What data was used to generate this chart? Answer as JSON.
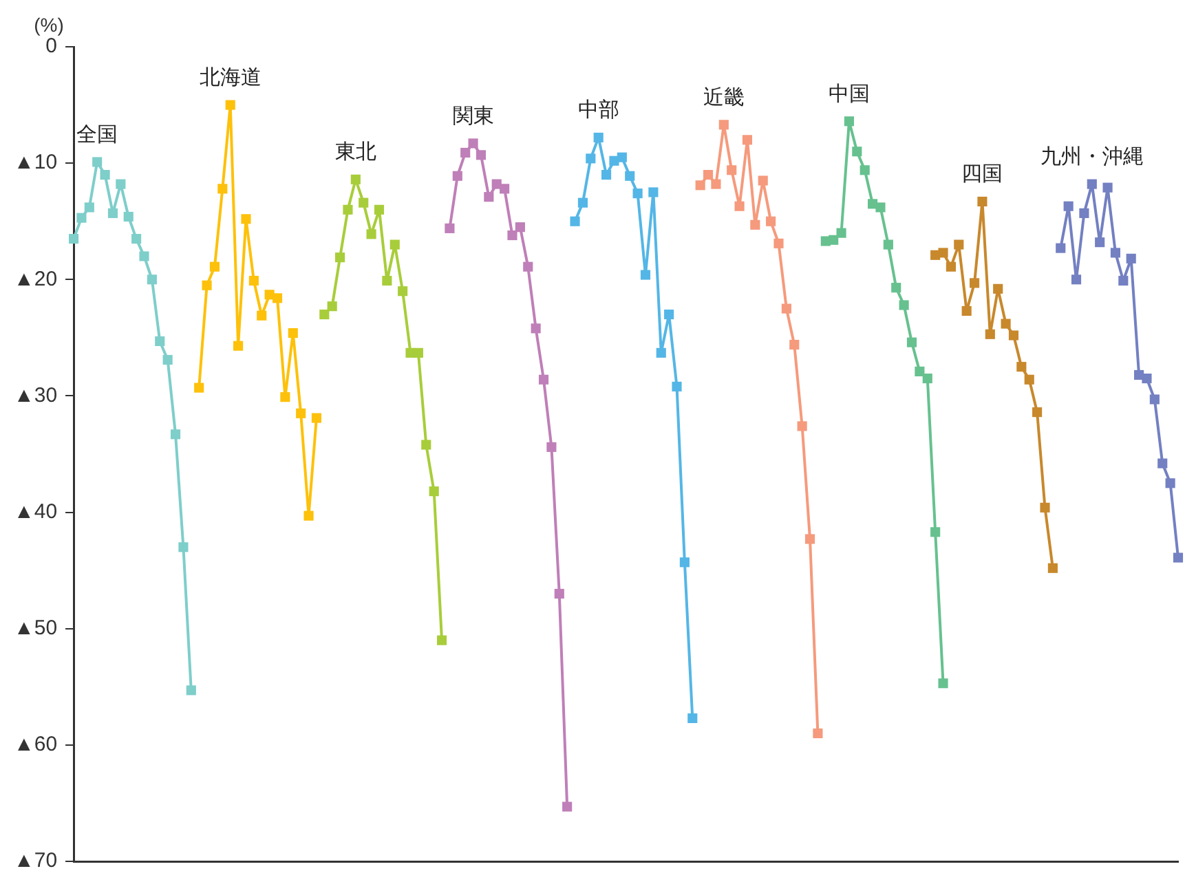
{
  "chart_data": {
    "type": "line",
    "ylabel": "(%)",
    "categories": [
      null,
      null,
      null,
      null,
      null,
      null,
      null,
      null,
      null,
      null,
      null,
      null,
      null,
      null,
      null,
      null,
      null,
      null,
      null,
      null,
      null,
      null,
      null,
      null,
      null,
      null,
      null,
      null,
      null,
      null,
      null,
      null,
      null,
      null,
      null,
      null,
      null,
      null,
      null,
      null,
      null,
      null,
      null,
      null,
      null,
      null,
      null,
      null,
      null,
      null,
      null,
      null,
      null,
      null,
      null,
      null,
      null,
      null,
      null,
      null,
      null,
      null,
      null,
      null,
      null,
      null,
      null,
      null,
      null,
      null,
      null,
      null,
      null,
      null,
      null,
      null,
      null,
      null,
      null,
      null,
      null,
      null,
      null,
      null,
      null,
      null,
      null,
      null,
      null,
      null,
      null,
      null,
      null,
      null,
      null,
      null,
      null,
      null,
      null,
      null,
      null,
      null,
      null,
      null,
      null,
      null,
      null,
      null,
      null,
      null,
      null,
      null,
      null,
      null,
      null,
      null,
      null,
      null,
      null,
      null,
      null,
      null,
      null,
      null,
      null,
      null,
      null,
      null,
      null,
      null,
      null,
      null,
      null,
      null,
      null,
      null,
      null,
      null,
      null,
      null,
      null,
      null
    ],
    "ylim": [
      -70,
      0
    ],
    "yticks": [
      0,
      {
        "value": -10,
        "label": "▲10"
      },
      {
        "value": -20,
        "label": "▲20"
      },
      {
        "value": -30,
        "label": "▲30"
      },
      {
        "value": -40,
        "label": "▲40"
      },
      {
        "value": -50,
        "label": "▲50"
      },
      {
        "value": -60,
        "label": "▲60"
      },
      {
        "value": -70,
        "label": "▲70"
      }
    ],
    "tick_labels": "y",
    "grid": false,
    "legend": false,
    "marker": "square",
    "line_style": "solid",
    "series": [
      {
        "name": "全国",
        "color": "#7ececa",
        "values": [
          -16.5,
          -14.7,
          -13.8,
          -9.9,
          -11.0,
          -14.3,
          -11.8,
          -14.6,
          -16.5,
          -18.0,
          -20.0,
          -25.3,
          -26.9,
          -33.3,
          -43.0,
          -55.3,
          null,
          null,
          null,
          null,
          null,
          null,
          null,
          null,
          null,
          null,
          null,
          null,
          null,
          null,
          null,
          null,
          null,
          null,
          null,
          null,
          null,
          null,
          null,
          null,
          null,
          null,
          null,
          null,
          null,
          null,
          null,
          null,
          null,
          null,
          null,
          null,
          null,
          null,
          null,
          null,
          null,
          null,
          null,
          null,
          null,
          null,
          null,
          null,
          null,
          null,
          null,
          null,
          null,
          null,
          null,
          null,
          null,
          null,
          null,
          null,
          null,
          null,
          null,
          null,
          null,
          null,
          null,
          null,
          null,
          null,
          null,
          null,
          null,
          null,
          null,
          null,
          null,
          null,
          null,
          null,
          null,
          null,
          null,
          null,
          null,
          null,
          null,
          null,
          null,
          null,
          null,
          null,
          null,
          null,
          null,
          null,
          null,
          null,
          null,
          null,
          null,
          null,
          null,
          null,
          null,
          null,
          null,
          null,
          null,
          null,
          null,
          null,
          null,
          null,
          null,
          null,
          null,
          null,
          null,
          null,
          null,
          null,
          null,
          null,
          null,
          null
        ]
      },
      {
        "name": "北海道",
        "color": "#fdc10b",
        "values": [
          null,
          null,
          null,
          null,
          null,
          null,
          null,
          null,
          null,
          null,
          null,
          null,
          null,
          null,
          null,
          null,
          -29.3,
          -20.5,
          -18.9,
          -12.2,
          -5.0,
          -25.7,
          -14.8,
          -20.1,
          -23.1,
          -21.3,
          -21.6,
          -30.1,
          -24.6,
          -31.5,
          -40.3,
          -31.9,
          null,
          null,
          null,
          null,
          null,
          null,
          null,
          null,
          null,
          null,
          null,
          null,
          null,
          null,
          null,
          null,
          null,
          null,
          null,
          null,
          null,
          null,
          null,
          null,
          null,
          null,
          null,
          null,
          null,
          null,
          null,
          null,
          null,
          null,
          null,
          null,
          null,
          null,
          null,
          null,
          null,
          null,
          null,
          null,
          null,
          null,
          null,
          null,
          null,
          null,
          null,
          null,
          null,
          null,
          null,
          null,
          null,
          null,
          null,
          null,
          null,
          null,
          null,
          null,
          null,
          null,
          null,
          null,
          null,
          null,
          null,
          null,
          null,
          null,
          null,
          null,
          null,
          null,
          null,
          null,
          null,
          null,
          null,
          null,
          null,
          null,
          null,
          null,
          null,
          null,
          null,
          null,
          null,
          null,
          null,
          null,
          null,
          null,
          null,
          null,
          null,
          null,
          null,
          null,
          null,
          null,
          null,
          null,
          null,
          null
        ]
      },
      {
        "name": "東北",
        "color": "#a8cd3a",
        "values": [
          null,
          null,
          null,
          null,
          null,
          null,
          null,
          null,
          null,
          null,
          null,
          null,
          null,
          null,
          null,
          null,
          null,
          null,
          null,
          null,
          null,
          null,
          null,
          null,
          null,
          null,
          null,
          null,
          null,
          null,
          null,
          null,
          -23.0,
          -22.3,
          -18.1,
          -14.0,
          -11.4,
          -13.4,
          -16.1,
          -14.0,
          -20.1,
          -17.0,
          -21.0,
          -26.3,
          -26.3,
          -34.2,
          -38.2,
          -51.0,
          null,
          null,
          null,
          null,
          null,
          null,
          null,
          null,
          null,
          null,
          null,
          null,
          null,
          null,
          null,
          null,
          null,
          null,
          null,
          null,
          null,
          null,
          null,
          null,
          null,
          null,
          null,
          null,
          null,
          null,
          null,
          null,
          null,
          null,
          null,
          null,
          null,
          null,
          null,
          null,
          null,
          null,
          null,
          null,
          null,
          null,
          null,
          null,
          null,
          null,
          null,
          null,
          null,
          null,
          null,
          null,
          null,
          null,
          null,
          null,
          null,
          null,
          null,
          null,
          null,
          null,
          null,
          null,
          null,
          null,
          null,
          null,
          null,
          null,
          null,
          null,
          null,
          null,
          null,
          null,
          null,
          null,
          null,
          null,
          null,
          null,
          null,
          null,
          null,
          null,
          null,
          null,
          null,
          null
        ]
      },
      {
        "name": "関東",
        "color": "#bf7fb8",
        "values": [
          null,
          null,
          null,
          null,
          null,
          null,
          null,
          null,
          null,
          null,
          null,
          null,
          null,
          null,
          null,
          null,
          null,
          null,
          null,
          null,
          null,
          null,
          null,
          null,
          null,
          null,
          null,
          null,
          null,
          null,
          null,
          null,
          null,
          null,
          null,
          null,
          null,
          null,
          null,
          null,
          null,
          null,
          null,
          null,
          null,
          null,
          null,
          null,
          -15.6,
          -11.1,
          -9.1,
          -8.3,
          -9.3,
          -12.9,
          -11.8,
          -12.2,
          -16.2,
          -15.5,
          -18.9,
          -24.2,
          -28.6,
          -34.4,
          -47.0,
          -65.3,
          null,
          null,
          null,
          null,
          null,
          null,
          null,
          null,
          null,
          null,
          null,
          null,
          null,
          null,
          null,
          null,
          null,
          null,
          null,
          null,
          null,
          null,
          null,
          null,
          null,
          null,
          null,
          null,
          null,
          null,
          null,
          null,
          null,
          null,
          null,
          null,
          null,
          null,
          null,
          null,
          null,
          null,
          null,
          null,
          null,
          null,
          null,
          null,
          null,
          null,
          null,
          null,
          null,
          null,
          null,
          null,
          null,
          null,
          null,
          null,
          null,
          null,
          null,
          null,
          null,
          null,
          null,
          null,
          null,
          null,
          null,
          null,
          null,
          null,
          null,
          null,
          null,
          null
        ]
      },
      {
        "name": "中部",
        "color": "#54b6e6",
        "values": [
          null,
          null,
          null,
          null,
          null,
          null,
          null,
          null,
          null,
          null,
          null,
          null,
          null,
          null,
          null,
          null,
          null,
          null,
          null,
          null,
          null,
          null,
          null,
          null,
          null,
          null,
          null,
          null,
          null,
          null,
          null,
          null,
          null,
          null,
          null,
          null,
          null,
          null,
          null,
          null,
          null,
          null,
          null,
          null,
          null,
          null,
          null,
          null,
          null,
          null,
          null,
          null,
          null,
          null,
          null,
          null,
          null,
          null,
          null,
          null,
          null,
          null,
          null,
          null,
          -15.0,
          -13.4,
          -9.6,
          -7.8,
          -11.0,
          -9.8,
          -9.5,
          -11.1,
          -12.6,
          -19.6,
          -12.5,
          -26.3,
          -23.0,
          -29.2,
          -44.3,
          -57.7,
          null,
          null,
          null,
          null,
          null,
          null,
          null,
          null,
          null,
          null,
          null,
          null,
          null,
          null,
          null,
          null,
          null,
          null,
          null,
          null,
          null,
          null,
          null,
          null,
          null,
          null,
          null,
          null,
          null,
          null,
          null,
          null,
          null,
          null,
          null,
          null,
          null,
          null,
          null,
          null,
          null,
          null,
          null,
          null,
          null,
          null,
          null,
          null,
          null,
          null,
          null,
          null,
          null,
          null,
          null,
          null,
          null,
          null,
          null,
          null,
          null,
          null
        ]
      },
      {
        "name": "近畿",
        "color": "#f59a7c",
        "values": [
          null,
          null,
          null,
          null,
          null,
          null,
          null,
          null,
          null,
          null,
          null,
          null,
          null,
          null,
          null,
          null,
          null,
          null,
          null,
          null,
          null,
          null,
          null,
          null,
          null,
          null,
          null,
          null,
          null,
          null,
          null,
          null,
          null,
          null,
          null,
          null,
          null,
          null,
          null,
          null,
          null,
          null,
          null,
          null,
          null,
          null,
          null,
          null,
          null,
          null,
          null,
          null,
          null,
          null,
          null,
          null,
          null,
          null,
          null,
          null,
          null,
          null,
          null,
          null,
          null,
          null,
          null,
          null,
          null,
          null,
          null,
          null,
          null,
          null,
          null,
          null,
          null,
          null,
          null,
          null,
          -11.9,
          -11.0,
          -11.8,
          -6.7,
          -10.6,
          -13.7,
          -8.0,
          -15.3,
          -11.5,
          -15.0,
          -16.9,
          -22.5,
          -25.6,
          -32.6,
          -42.3,
          -59.0,
          null,
          null,
          null,
          null,
          null,
          null,
          null,
          null,
          null,
          null,
          null,
          null,
          null,
          null,
          null,
          null,
          null,
          null,
          null,
          null,
          null,
          null,
          null,
          null,
          null,
          null,
          null,
          null,
          null,
          null,
          null,
          null,
          null,
          null,
          null,
          null,
          null,
          null,
          null,
          null,
          null,
          null,
          null,
          null,
          null,
          null
        ]
      },
      {
        "name": "中国",
        "color": "#66c18f",
        "values": [
          null,
          null,
          null,
          null,
          null,
          null,
          null,
          null,
          null,
          null,
          null,
          null,
          null,
          null,
          null,
          null,
          null,
          null,
          null,
          null,
          null,
          null,
          null,
          null,
          null,
          null,
          null,
          null,
          null,
          null,
          null,
          null,
          null,
          null,
          null,
          null,
          null,
          null,
          null,
          null,
          null,
          null,
          null,
          null,
          null,
          null,
          null,
          null,
          null,
          null,
          null,
          null,
          null,
          null,
          null,
          null,
          null,
          null,
          null,
          null,
          null,
          null,
          null,
          null,
          null,
          null,
          null,
          null,
          null,
          null,
          null,
          null,
          null,
          null,
          null,
          null,
          null,
          null,
          null,
          null,
          null,
          null,
          null,
          null,
          null,
          null,
          null,
          null,
          null,
          null,
          null,
          null,
          null,
          null,
          null,
          null,
          -16.7,
          -16.6,
          -16.0,
          -6.4,
          -9.0,
          -10.6,
          -13.5,
          -13.8,
          -17.0,
          -20.7,
          -22.2,
          -25.4,
          -27.9,
          -28.5,
          -41.7,
          -54.7,
          null,
          null,
          null,
          null,
          null,
          null,
          null,
          null,
          null,
          null,
          null,
          null,
          null,
          null,
          null,
          null,
          null,
          null,
          null,
          null,
          null,
          null,
          null,
          null,
          null,
          null,
          null,
          null,
          null,
          null
        ]
      },
      {
        "name": "四国",
        "color": "#c8882c",
        "values": [
          null,
          null,
          null,
          null,
          null,
          null,
          null,
          null,
          null,
          null,
          null,
          null,
          null,
          null,
          null,
          null,
          null,
          null,
          null,
          null,
          null,
          null,
          null,
          null,
          null,
          null,
          null,
          null,
          null,
          null,
          null,
          null,
          null,
          null,
          null,
          null,
          null,
          null,
          null,
          null,
          null,
          null,
          null,
          null,
          null,
          null,
          null,
          null,
          null,
          null,
          null,
          null,
          null,
          null,
          null,
          null,
          null,
          null,
          null,
          null,
          null,
          null,
          null,
          null,
          null,
          null,
          null,
          null,
          null,
          null,
          null,
          null,
          null,
          null,
          null,
          null,
          null,
          null,
          null,
          null,
          null,
          null,
          null,
          null,
          null,
          null,
          null,
          null,
          null,
          null,
          null,
          null,
          null,
          null,
          null,
          null,
          null,
          null,
          null,
          null,
          null,
          null,
          null,
          null,
          null,
          null,
          null,
          null,
          null,
          null,
          -17.9,
          -17.7,
          -18.9,
          -17.0,
          -22.7,
          -20.3,
          -13.3,
          -24.7,
          -20.8,
          -23.8,
          -24.8,
          -27.5,
          -28.6,
          -31.4,
          -39.6,
          -44.8,
          null,
          null,
          null,
          null,
          null,
          null,
          null,
          null,
          null,
          null,
          null,
          null,
          null,
          null,
          null,
          null
        ]
      },
      {
        "name": "九州・沖縄",
        "color": "#7380c2",
        "values": [
          null,
          null,
          null,
          null,
          null,
          null,
          null,
          null,
          null,
          null,
          null,
          null,
          null,
          null,
          null,
          null,
          null,
          null,
          null,
          null,
          null,
          null,
          null,
          null,
          null,
          null,
          null,
          null,
          null,
          null,
          null,
          null,
          null,
          null,
          null,
          null,
          null,
          null,
          null,
          null,
          null,
          null,
          null,
          null,
          null,
          null,
          null,
          null,
          null,
          null,
          null,
          null,
          null,
          null,
          null,
          null,
          null,
          null,
          null,
          null,
          null,
          null,
          null,
          null,
          null,
          null,
          null,
          null,
          null,
          null,
          null,
          null,
          null,
          null,
          null,
          null,
          null,
          null,
          null,
          null,
          null,
          null,
          null,
          null,
          null,
          null,
          null,
          null,
          null,
          null,
          null,
          null,
          null,
          null,
          null,
          null,
          null,
          null,
          null,
          null,
          null,
          null,
          null,
          null,
          null,
          null,
          null,
          null,
          null,
          null,
          null,
          null,
          null,
          null,
          null,
          null,
          null,
          null,
          null,
          null,
          null,
          null,
          null,
          null,
          null,
          null,
          -17.3,
          -13.7,
          -20.0,
          -14.3,
          -11.8,
          -16.8,
          -12.1,
          -17.7,
          -20.1,
          -18.2,
          -28.2,
          -28.5,
          -30.3,
          -35.8,
          -37.5,
          -43.9
        ]
      }
    ]
  }
}
